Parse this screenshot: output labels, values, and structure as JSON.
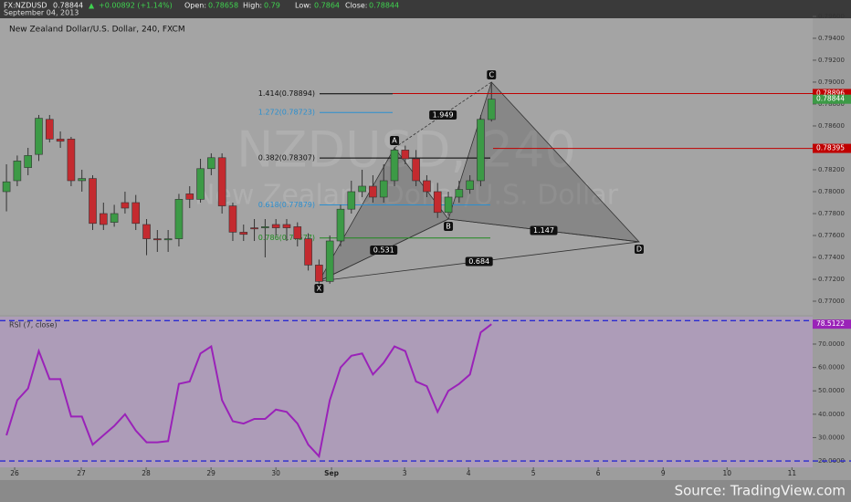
{
  "header": {
    "symbol": "FX:NZDUSD",
    "change": "+0.00892 (+1.14%)",
    "open_label": "Open:",
    "high_label": "High:",
    "low_label": "Low:",
    "close_label": "Close:",
    "date": "September 04, 2013"
  },
  "footer": "Source: TradingView.com",
  "chart_data": [
    {
      "type": "candlestick",
      "title": "New Zealand Dollar/U.S. Dollar, 240, FXCM",
      "watermark": [
        "NZDUSD, 240",
        "New Zealand Dollar/U.S. Dollar"
      ],
      "x": [
        0,
        1,
        2,
        3,
        4,
        5,
        6,
        7,
        8,
        9,
        10,
        11,
        12,
        13,
        14,
        15,
        16,
        17,
        18,
        19,
        20,
        21,
        22,
        23,
        24,
        25,
        26,
        27,
        28,
        29,
        30,
        31,
        32,
        33,
        34,
        35,
        36,
        37,
        38,
        39,
        40,
        41,
        42,
        43,
        44,
        45
      ],
      "open": [
        0.78,
        0.781,
        0.7822,
        0.7834,
        0.7866,
        0.7848,
        0.7848,
        0.781,
        0.7812,
        0.778,
        0.7772,
        0.779,
        0.779,
        0.777,
        0.7757,
        0.7756,
        0.7757,
        0.7798,
        0.7793,
        0.7821,
        0.7831,
        0.7787,
        0.7763,
        0.7767,
        0.7767,
        0.777,
        0.777,
        0.7768,
        0.7757,
        0.7733,
        0.7718,
        0.7755,
        0.7784,
        0.78,
        0.7805,
        0.7795,
        0.781,
        0.7838,
        0.783,
        0.781,
        0.78,
        0.7781,
        0.7795,
        0.7802,
        0.781,
        0.78658
      ],
      "high": [
        0.7825,
        0.7833,
        0.784,
        0.787,
        0.787,
        0.7855,
        0.785,
        0.782,
        0.7815,
        0.779,
        0.7788,
        0.78,
        0.7797,
        0.7775,
        0.7765,
        0.7765,
        0.7798,
        0.7805,
        0.783,
        0.7835,
        0.7835,
        0.779,
        0.777,
        0.7775,
        0.7775,
        0.7775,
        0.7775,
        0.7772,
        0.7762,
        0.7738,
        0.776,
        0.7788,
        0.781,
        0.782,
        0.7815,
        0.7825,
        0.784,
        0.7842,
        0.7838,
        0.7815,
        0.7808,
        0.78,
        0.781,
        0.7815,
        0.787,
        0.79
      ],
      "low": [
        0.7782,
        0.7805,
        0.7815,
        0.7828,
        0.7845,
        0.784,
        0.7805,
        0.78,
        0.7765,
        0.7765,
        0.7768,
        0.778,
        0.7765,
        0.7742,
        0.7745,
        0.7745,
        0.775,
        0.7785,
        0.779,
        0.7815,
        0.778,
        0.7755,
        0.7755,
        0.7755,
        0.774,
        0.776,
        0.7755,
        0.775,
        0.7728,
        0.7716,
        0.7716,
        0.775,
        0.778,
        0.7795,
        0.779,
        0.779,
        0.7805,
        0.7825,
        0.7805,
        0.7795,
        0.7776,
        0.7778,
        0.779,
        0.7798,
        0.7805,
        0.7864
      ],
      "close": [
        0.7809,
        0.7828,
        0.7833,
        0.7867,
        0.7848,
        0.7846,
        0.781,
        0.7812,
        0.7771,
        0.777,
        0.778,
        0.7785,
        0.7771,
        0.7757,
        0.7756,
        0.7757,
        0.7793,
        0.7793,
        0.7821,
        0.7831,
        0.7787,
        0.7763,
        0.7761,
        0.7766,
        0.7768,
        0.7767,
        0.7767,
        0.7757,
        0.7733,
        0.7718,
        0.7755,
        0.7784,
        0.78,
        0.7805,
        0.7795,
        0.781,
        0.7838,
        0.783,
        0.781,
        0.78,
        0.7781,
        0.7795,
        0.7802,
        0.781,
        0.7866,
        0.78844
      ],
      "up_color": "#3c9a46",
      "down_color": "#c42a2f",
      "xlim": [
        -0.6,
        74.8
      ],
      "ylim": [
        0.76875,
        0.79583
      ],
      "yticks": [
        {
          "value": 0.77,
          "label": "0.77000"
        },
        {
          "value": 0.772,
          "label": "0.77200"
        },
        {
          "value": 0.774,
          "label": "0.77400"
        },
        {
          "value": 0.776,
          "label": "0.77600"
        },
        {
          "value": 0.778,
          "label": "0.77800"
        },
        {
          "value": 0.78,
          "label": "0.78000"
        },
        {
          "value": 0.782,
          "label": "0.78200"
        },
        {
          "value": 0.786,
          "label": "0.78600"
        },
        {
          "value": 0.788,
          "label": "0.78800"
        },
        {
          "value": 0.79,
          "label": "0.79000"
        },
        {
          "value": 0.792,
          "label": "0.79200"
        },
        {
          "value": 0.794,
          "label": "0.79400"
        },
        {
          "value": 0.796,
          "label": "0.79600"
        }
      ],
      "price_lines": [
        {
          "value": 0.78896,
          "color": "#c00000"
        },
        {
          "value": 0.78395,
          "color": "#c00000"
        }
      ],
      "fib_levels": [
        {
          "label": "1.414(0.78894)",
          "value": 0.78894,
          "color": "#000000"
        },
        {
          "label": "1.272(0.78723)",
          "value": 0.78723,
          "color": "#2a8fd0"
        },
        {
          "label": "0.382(0.78307)",
          "value": 0.78307,
          "color": "#000000"
        },
        {
          "label": "0.618(0.77879)",
          "value": 0.77879,
          "color": "#2a8fd0"
        },
        {
          "label": "0.786(0.77577)",
          "value": 0.77577,
          "color": "#1e8a1e"
        }
      ],
      "pattern": {
        "points": [
          {
            "label": "X",
            "x": 29,
            "y": 0.77183
          },
          {
            "label": "A",
            "x": 36,
            "y": 0.784
          },
          {
            "label": "B",
            "x": 41,
            "y": 0.7775
          },
          {
            "label": "C",
            "x": 45,
            "y": 0.79
          },
          {
            "label": "D",
            "x": 58.7,
            "y": 0.77542
          }
        ],
        "ratios": [
          0.531,
          0.684,
          1.147,
          1.949
        ]
      }
    },
    {
      "type": "line",
      "title": "RSI (7, close)",
      "color": "#9a22b8",
      "x": [
        0,
        1,
        2,
        3,
        4,
        5,
        6,
        7,
        8,
        9,
        10,
        11,
        12,
        13,
        14,
        15,
        16,
        17,
        18,
        19,
        20,
        21,
        22,
        23,
        24,
        25,
        26,
        27,
        28,
        29,
        30,
        31,
        32,
        33,
        34,
        35,
        36,
        37,
        38,
        39,
        40,
        41,
        42,
        43,
        44,
        45
      ],
      "values": [
        31,
        46,
        51,
        67,
        55,
        55,
        39,
        39,
        27,
        31,
        35,
        40,
        33,
        28,
        28,
        28.5,
        53,
        54,
        66,
        69,
        46,
        37,
        36,
        38,
        38,
        42,
        41,
        36,
        27,
        22,
        46,
        60,
        65,
        66,
        57,
        62,
        69,
        67,
        54,
        52,
        41,
        50,
        53,
        57,
        75,
        78.5122
      ],
      "xlim": [
        -0.6,
        74.8
      ],
      "ylim": [
        17.3,
        81.7
      ],
      "levels": [
        20,
        80
      ],
      "yticks": [
        {
          "value": 20,
          "label": "20.0000"
        },
        {
          "value": 30,
          "label": "30.0000"
        },
        {
          "value": 40,
          "label": "40.0000"
        },
        {
          "value": 50,
          "label": "50.0000"
        },
        {
          "value": 60,
          "label": "60.0000"
        },
        {
          "value": 70,
          "label": "70.0000"
        }
      ],
      "xticks": [
        {
          "value": 0.76,
          "label": "26"
        },
        {
          "value": 6.94,
          "label": "27"
        },
        {
          "value": 12.96,
          "label": "28"
        },
        {
          "value": 18.98,
          "label": "29"
        },
        {
          "value": 25,
          "label": "30"
        },
        {
          "value": 30.16,
          "label": "Sep"
        },
        {
          "value": 36.94,
          "label": "3"
        },
        {
          "value": 42.87,
          "label": "4"
        },
        {
          "value": 48.89,
          "label": "5"
        },
        {
          "value": 54.9,
          "label": "6"
        },
        {
          "value": 60.93,
          "label": "9"
        },
        {
          "value": 66.86,
          "label": "10"
        },
        {
          "value": 72.88,
          "label": "11"
        }
      ]
    }
  ]
}
